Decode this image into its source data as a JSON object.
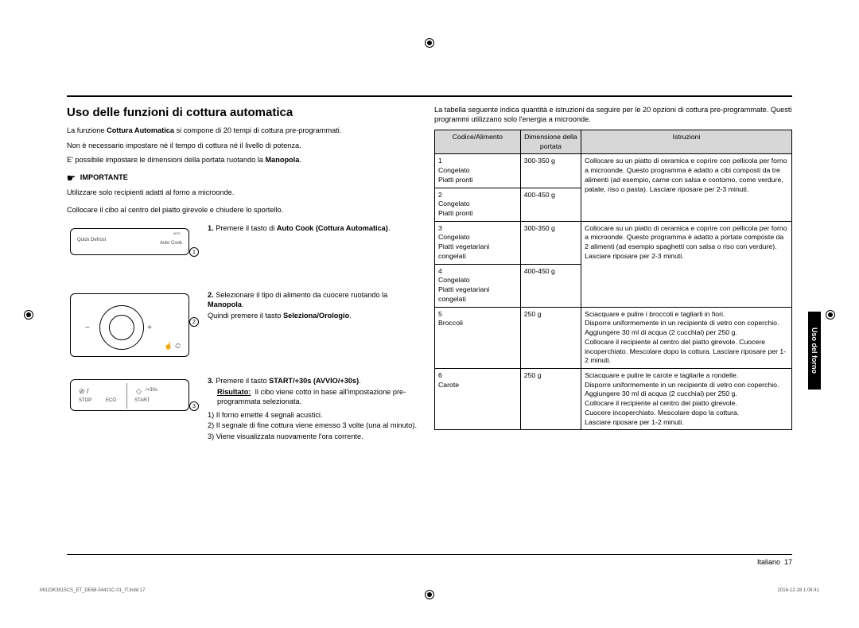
{
  "heading": "Uso delle funzioni di cottura automatica",
  "intro1_a": "La funzione ",
  "intro1_b": "Cottura Automatica",
  "intro1_c": " si compone di 20 tempi di cottura pre-programmati.",
  "intro2": "Non è necessario impostare né il tempo di cottura né il livello di potenza.",
  "intro3_a": "E' possibile impostare le dimensioni della portata ruotando la ",
  "intro3_b": "Manopola",
  "important_label": "IMPORTANTE",
  "important_text": "Utilizzare solo recipienti adatti al forno a microonde.",
  "place_text": "Collocare il cibo al centro del piatto girevole e chiudere lo sportello.",
  "step1_a": "1.",
  "step1_b": "Premere il tasto di ",
  "step1_c": "Auto Cook (Cottura Automatica)",
  "step2_a": "2.",
  "step2_b": "Selezionare il tipo di alimento da cuocere ruotando la ",
  "step2_c": "Manopola",
  "step2_d": "Quindi premere il tasto ",
  "step2_e": "Seleziona/Orologio",
  "step3_a": "3.",
  "step3_b": "Premere il tasto ",
  "step3_c": "START/+30s (AVVIO/+30s)",
  "step3_res_label": "Risultato:",
  "step3_res_text": "Il cibo viene cotto in base all'impostazione pre-programmata selezionata.",
  "step3_sub1": "1) Il forno emette 4 segnali acustici.",
  "step3_sub2": "2) Il segnale di fine cottura viene emesso 3 volte (una al minuto).",
  "step3_sub3": "3) Viene visualizzata nuovamente l'ora corrente.",
  "right_intro": "La tabella seguente indica quantità e istruzioni da seguire per le 20 opzioni di cottura pre-programmate. Questi programmi utilizzano solo l'energia a microonde.",
  "table": {
    "headers": [
      "Codice/Alimento",
      "Dimensione della portata",
      "Istruzioni"
    ],
    "rows": [
      {
        "c1": "1\nCongelato\nPiatti pronti",
        "c2": "300-350 g",
        "c3": "Collocare su un piatto di ceramica e coprire con pellicola per forno a microonde. Questo programma è adatto a cibi composti da tre alimenti (ad esempio, carne con salsa e contorno, come verdure, patate, riso o pasta). Lasciare riposare per 2-3 minuti.",
        "rs": 2
      },
      {
        "c1": "2\nCongelato\nPiatti pronti",
        "c2": "400-450 g"
      },
      {
        "c1": "3\nCongelato\nPiatti vegetariani congelati",
        "c2": "300-350 g",
        "c3": "Collocare su un piatto di ceramica e coprire con pellicola per forno a microonde. Questo programma è adatto a portate composte da 2 alimenti (ad esempio spaghetti con salsa o riso con verdure). Lasciare riposare per 2-3 minuti.",
        "rs": 2
      },
      {
        "c1": "4\nCongelato\nPiatti vegetariani congelati",
        "c2": "400-450 g"
      },
      {
        "c1": "5\nBroccoli",
        "c2": "250 g",
        "c3": "Sciacquare e pulire i broccoli e tagliarli in fiori.\nDisporre uniformemente in un recipiente di vetro con coperchio. Aggiungere 30 ml di acqua (2 cucchiai) per 250 g.\nCollocare il recipiente al centro del piatto girevole. Cuocere incoperchiato. Mescolare dopo la cottura. Lasciare riposare per 1-2 minuti."
      },
      {
        "c1": "6\nCarote",
        "c2": "250 g",
        "c3": "Sciacquare e pulire le carote e tagliarle a rondelle.\nDisporre uniformemente in un recipiente di vetro con coperchio. Aggiungere 30 ml di acqua (2 cucchiai) per 250 g.\nCollocare il recipiente al centro del piatto girevole.\nCuocere incoperchiato. Mescolare dopo la cottura.\nLasciare riposare per 1-2 minuti."
      }
    ]
  },
  "side_tab": "Uso del forno",
  "footer_lang": "Italiano",
  "footer_page": "17",
  "tiny_left": "MG23K3515CS_ET_DE68-04421C-01_IT.indd   17",
  "tiny_right": "2016-12-28   1:08:41",
  "dia_labels": {
    "quick": "Quick Defrost",
    "auto": "Auto Cook",
    "stop": "STOP",
    "eco": "ECO",
    "start": "START",
    "plus30": "/+30s"
  }
}
